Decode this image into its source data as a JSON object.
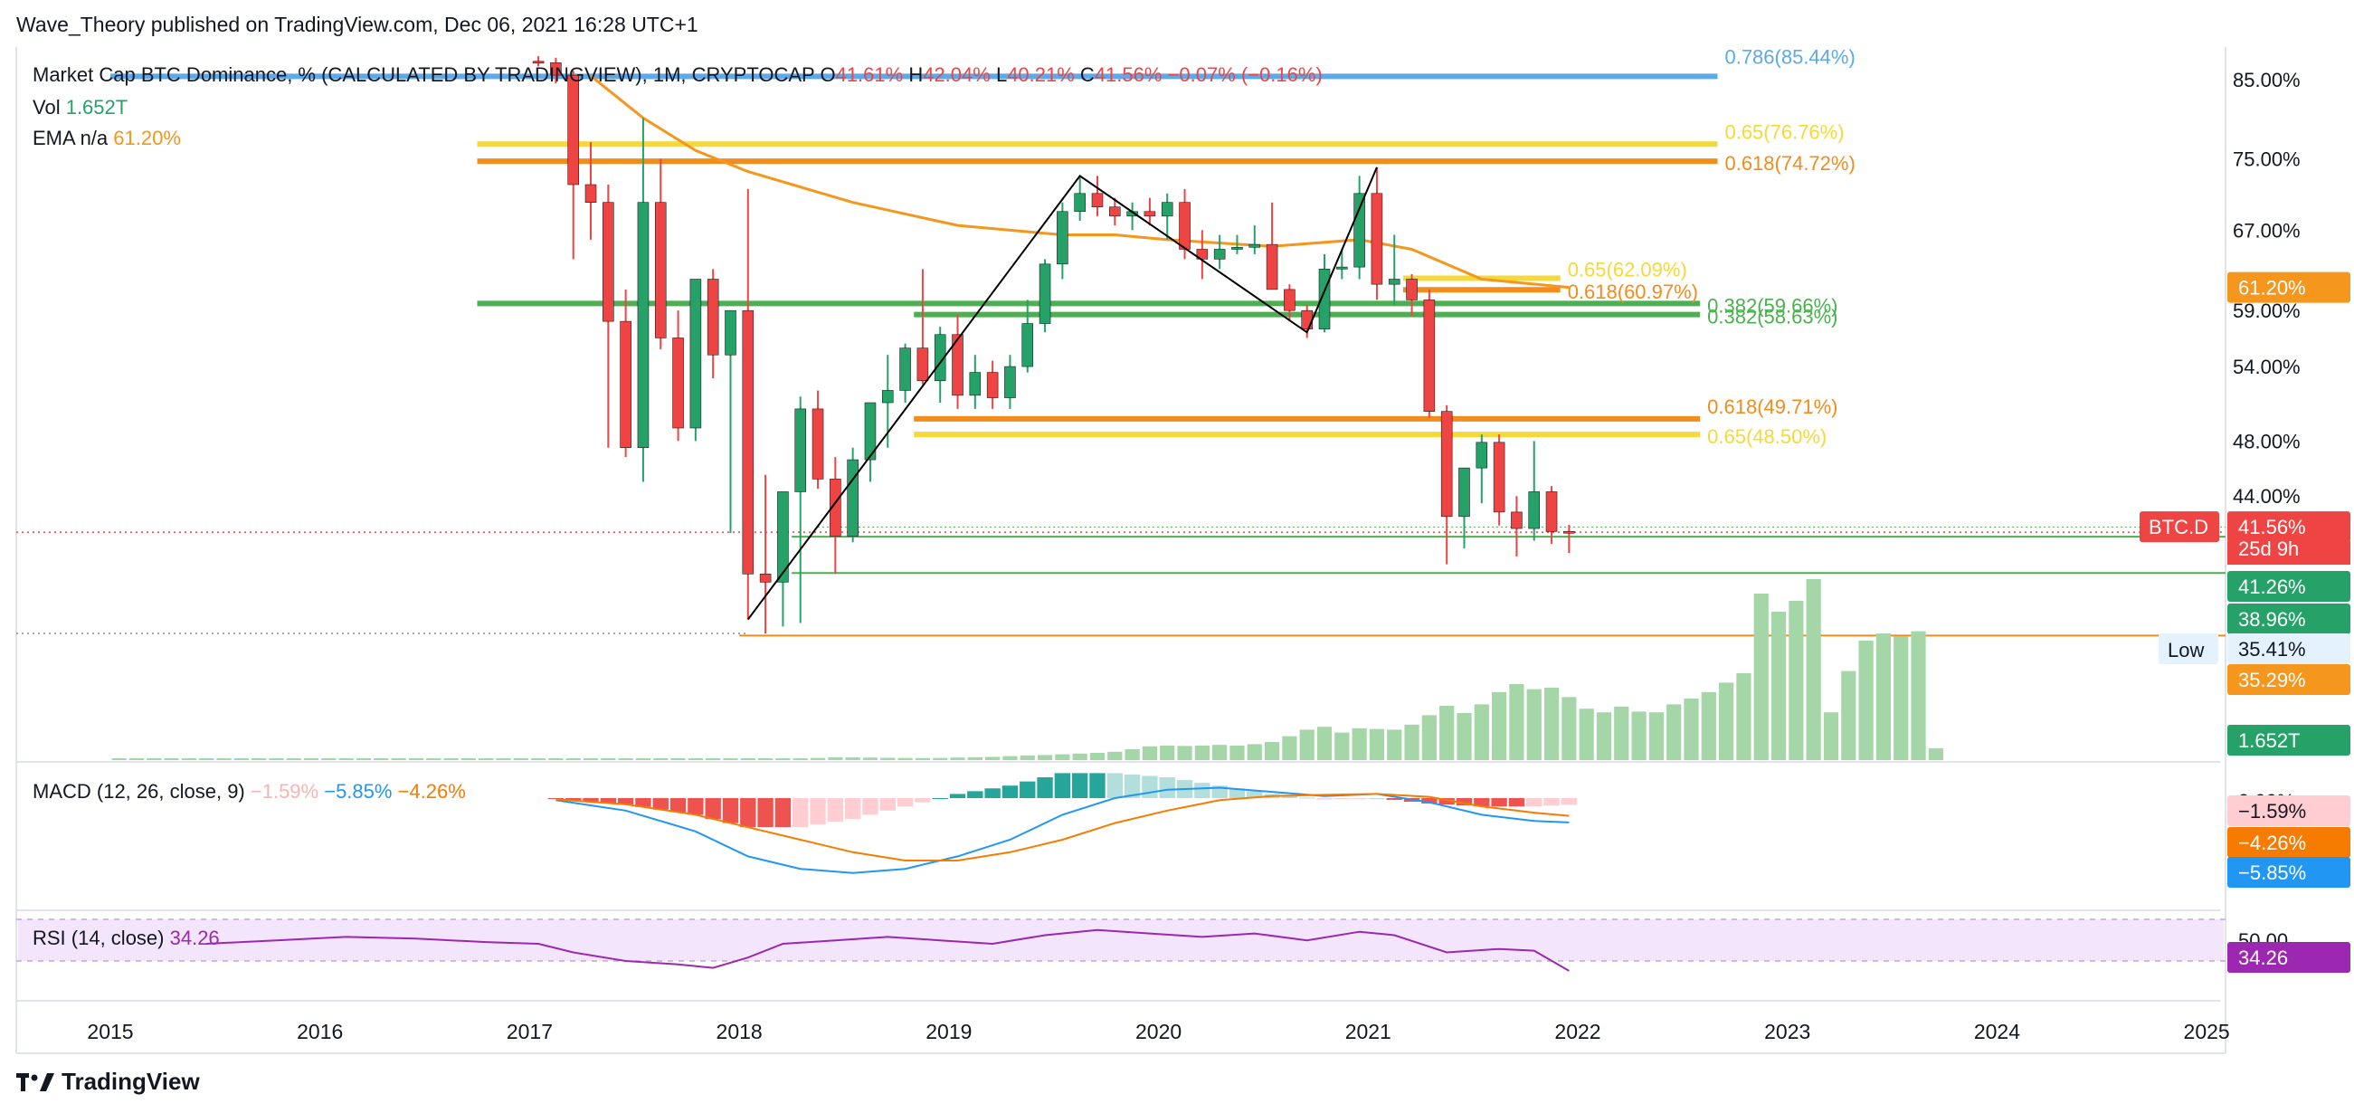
{
  "header": {
    "published": "Wave_Theory published on TradingView.com, Dec 06, 2021 16:28 UTC+1"
  },
  "legend": {
    "symbol": "Market Cap BTC Dominance, % (CALCULATED BY TRADINGVIEW), 1M, CRYPTOCAP",
    "open_label": "O",
    "open": "41.61%",
    "high_label": "H",
    "high": "42.04%",
    "low_label": "L",
    "low": "40.21%",
    "close_label": "C",
    "close": "41.56%",
    "change": "−0.07% (−0.16%)",
    "vol_label": "Vol",
    "vol": "1.652T",
    "ema_label": "EMA n/a",
    "ema": "61.20%"
  },
  "price_axis": {
    "ticks": [
      "85.00%",
      "75.00%",
      "67.00%",
      "59.00%",
      "54.00%",
      "48.00%",
      "44.00%"
    ]
  },
  "price_labels": {
    "ema": "61.20%",
    "symbol_tag": "BTC.D",
    "last": "41.56%",
    "countdown": "25d 9h",
    "level1": "41.26%",
    "level2": "38.96%",
    "low_tag": "Low",
    "low_value": "35.41%",
    "level3": "35.29%",
    "volume": "1.652T"
  },
  "fib_levels": [
    {
      "label": "0.786(85.44%)",
      "color": "#5da9e9"
    },
    {
      "label": "0.65(76.76%)",
      "color": "#f5d938"
    },
    {
      "label": "0.618(74.72%)",
      "color": "#f28c1c"
    },
    {
      "label": "0.65(62.09%)",
      "color": "#f5d938"
    },
    {
      "label": "0.618(60.97%)",
      "color": "#f28c1c"
    },
    {
      "label": "0.382(59.66%)",
      "color": "#4caf50"
    },
    {
      "label": "0.382(58.63%)",
      "color": "#4caf50"
    },
    {
      "label": "0.618(49.71%)",
      "color": "#f28c1c"
    },
    {
      "label": "0.65(48.50%)",
      "color": "#f5d938"
    }
  ],
  "macd": {
    "title": "MACD (12, 26, close, 9)",
    "hist": "−1.59%",
    "macd": "−5.85%",
    "signal": "−4.26%",
    "axis_top": "0.00%",
    "label_hist": "−1.59%",
    "label_signal": "−4.26%",
    "label_macd": "−5.85%"
  },
  "rsi": {
    "title": "RSI (14, close)",
    "value": "34.26",
    "axis_top": "50.00",
    "label": "34.26"
  },
  "time_axis": [
    "2015",
    "2016",
    "2017",
    "2018",
    "2019",
    "2020",
    "2021",
    "2022",
    "2023",
    "2024",
    "2025"
  ],
  "brand": "TradingView",
  "colors": {
    "up": "#26a269",
    "down": "#ef4444",
    "volume": "#a5d6a7",
    "ema": "#f5961d",
    "macd": "#2196f3",
    "signal": "#f57c00",
    "rsi": "#9c27b0",
    "rsi_band": "#f3e5fb",
    "fib_blue": "#5da9e9",
    "fib_yellow": "#f5d938",
    "fib_orange": "#f28c1c",
    "fib_green": "#4caf50"
  },
  "chart_data": {
    "type": "candlestick",
    "title": "Market Cap BTC Dominance, % (CALCULATED BY TRADINGVIEW), 1M, CRYPTOCAP",
    "interval": "1M",
    "y_scale": "log",
    "ylim": [
      33,
      88
    ],
    "xlim": [
      "2015-01",
      "2025-01"
    ],
    "candles_ohlc": [
      [
        "2017-01",
        87.5,
        88.2,
        86.8,
        87.3
      ],
      [
        "2017-02",
        87.3,
        88.0,
        84.5,
        85.6
      ],
      [
        "2017-03",
        85.6,
        86.2,
        64.0,
        72.0
      ],
      [
        "2017-04",
        72.0,
        77.0,
        66.0,
        70.0
      ],
      [
        "2017-05",
        70.0,
        72.0,
        47.5,
        58.0
      ],
      [
        "2017-06",
        58.0,
        61.0,
        46.8,
        47.5
      ],
      [
        "2017-07",
        47.5,
        80.0,
        45.0,
        70.0
      ],
      [
        "2017-08",
        70.0,
        75.0,
        55.5,
        56.5
      ],
      [
        "2017-09",
        56.5,
        59.0,
        48.0,
        49.0
      ],
      [
        "2017-10",
        49.0,
        62.0,
        48.0,
        62.0
      ],
      [
        "2017-11",
        62.0,
        63.0,
        53.0,
        55.0
      ],
      [
        "2017-12",
        55.0,
        59.0,
        41.5,
        59.0
      ],
      [
        "2018-01",
        59.0,
        71.5,
        36.2,
        38.9
      ],
      [
        "2018-02",
        38.9,
        45.5,
        35.4,
        38.4
      ],
      [
        "2018-03",
        38.4,
        44.3,
        35.8,
        44.3
      ],
      [
        "2018-04",
        44.3,
        51.5,
        36.0,
        50.5
      ],
      [
        "2018-05",
        50.5,
        52.0,
        44.5,
        45.2
      ],
      [
        "2018-06",
        45.2,
        46.8,
        38.9,
        41.3
      ],
      [
        "2018-07",
        41.3,
        47.5,
        40.9,
        46.6
      ],
      [
        "2018-08",
        46.6,
        51.0,
        45.0,
        51.0
      ],
      [
        "2018-09",
        51.0,
        55.0,
        47.5,
        52.0
      ],
      [
        "2018-10",
        52.0,
        56.0,
        51.0,
        55.6
      ],
      [
        "2018-11",
        55.6,
        63.0,
        52.5,
        52.8
      ],
      [
        "2018-12",
        52.8,
        57.5,
        51.0,
        56.8
      ],
      [
        "2019-01",
        56.8,
        58.6,
        50.5,
        51.6
      ],
      [
        "2019-02",
        51.6,
        55.0,
        50.5,
        53.5
      ],
      [
        "2019-03",
        53.5,
        54.5,
        50.5,
        51.4
      ],
      [
        "2019-04",
        51.4,
        55.0,
        50.5,
        54.0
      ],
      [
        "2019-05",
        54.0,
        60.0,
        53.5,
        57.8
      ],
      [
        "2019-06",
        57.8,
        64.0,
        57.0,
        63.5
      ],
      [
        "2019-07",
        63.5,
        70.0,
        62.0,
        69.0
      ],
      [
        "2019-08",
        69.0,
        73.0,
        68.0,
        71.0
      ],
      [
        "2019-09",
        71.0,
        73.0,
        68.5,
        69.5
      ],
      [
        "2019-10",
        69.5,
        70.5,
        67.5,
        68.5
      ],
      [
        "2019-11",
        68.5,
        70.0,
        67.0,
        69.0
      ],
      [
        "2019-12",
        69.0,
        70.5,
        67.5,
        68.5
      ],
      [
        "2020-01",
        68.5,
        71.0,
        66.0,
        70.0
      ],
      [
        "2020-02",
        70.0,
        71.5,
        64.0,
        65.0
      ],
      [
        "2020-03",
        65.0,
        67.0,
        62.0,
        64.0
      ],
      [
        "2020-04",
        64.0,
        66.5,
        63.0,
        65.0
      ],
      [
        "2020-05",
        65.0,
        66.5,
        64.5,
        65.2
      ],
      [
        "2020-06",
        65.2,
        67.5,
        64.5,
        65.5
      ],
      [
        "2020-07",
        65.5,
        70.0,
        62.0,
        61.0
      ],
      [
        "2020-08",
        61.0,
        61.5,
        58.0,
        59.0
      ],
      [
        "2020-09",
        59.0,
        59.5,
        56.5,
        57.3
      ],
      [
        "2020-10",
        57.3,
        64.5,
        57.0,
        63.0
      ],
      [
        "2020-11",
        63.0,
        65.0,
        62.0,
        63.2
      ],
      [
        "2020-12",
        63.2,
        73.0,
        62.0,
        71.0
      ],
      [
        "2021-01",
        71.0,
        74.0,
        60.0,
        61.5
      ],
      [
        "2021-02",
        61.5,
        66.5,
        59.5,
        62.0
      ],
      [
        "2021-03",
        62.0,
        62.5,
        58.5,
        60.0
      ],
      [
        "2021-04",
        60.0,
        61.0,
        49.8,
        50.3
      ],
      [
        "2021-05",
        50.3,
        50.8,
        39.5,
        42.6
      ],
      [
        "2021-06",
        42.6,
        46.0,
        40.5,
        46.0
      ],
      [
        "2021-07",
        46.0,
        48.5,
        43.5,
        47.9
      ],
      [
        "2021-08",
        47.9,
        48.5,
        42.0,
        42.9
      ],
      [
        "2021-09",
        42.9,
        44.0,
        40.0,
        41.8
      ],
      [
        "2021-10",
        41.8,
        48.0,
        41.0,
        44.3
      ],
      [
        "2021-11",
        44.3,
        44.7,
        40.8,
        41.6
      ],
      [
        "2021-12",
        41.61,
        42.04,
        40.21,
        41.56
      ]
    ],
    "volume_trillions": [
      0.004,
      0.004,
      0.004,
      0.004,
      0.004,
      0.004,
      0.005,
      0.005,
      0.006,
      0.006,
      0.007,
      0.008,
      0.009,
      0.01,
      0.01,
      0.01,
      0.011,
      0.011,
      0.012,
      0.012,
      0.014,
      0.016,
      0.02,
      0.024,
      0.03,
      0.036,
      0.042,
      0.045,
      0.05,
      0.052,
      0.055,
      0.058,
      0.065,
      0.07,
      0.08,
      0.09,
      0.1,
      0.12,
      0.15,
      0.2,
      0.3,
      0.4,
      0.38,
      0.35,
      0.32,
      0.3,
      0.28,
      0.3,
      0.35,
      0.4,
      0.45,
      0.55,
      0.65,
      0.7,
      0.8,
      0.9,
      1.0,
      1.15,
      1.5,
      1.9,
      2.0,
      1.95,
      2.0,
      2.1,
      2.0,
      2.2,
      2.5,
      3.3,
      4.2,
      4.6,
      3.8,
      4.4,
      4.3,
      4.2,
      4.9,
      6.2,
      7.5,
      6.5,
      7.7,
      9.4,
      10.5,
      9.8,
      10.0,
      8.7,
      7.1,
      6.6,
      7.4,
      6.7,
      6.6,
      7.7,
      8.5,
      9.4,
      10.7,
      12.0,
      23.0,
      20.5,
      22.0,
      25.0,
      6.6,
      12.3,
      16.5,
      17.5,
      17.1,
      17.8,
      1.65
    ],
    "volume_start": "2015-01",
    "ema": [
      [
        "2017-04",
        85.5
      ],
      [
        "2017-07",
        80.0
      ],
      [
        "2017-10",
        76.0
      ],
      [
        "2018-01",
        73.5
      ],
      [
        "2018-07",
        70.0
      ],
      [
        "2019-01",
        67.5
      ],
      [
        "2019-07",
        66.5
      ],
      [
        "2019-10",
        66.5
      ],
      [
        "2020-01",
        66.0
      ],
      [
        "2020-07",
        65.3
      ],
      [
        "2020-12",
        66.0
      ],
      [
        "2021-03",
        65.0
      ],
      [
        "2021-07",
        62.0
      ],
      [
        "2021-12",
        61.2
      ]
    ],
    "fib_lines": [
      {
        "label": "0.786(85.44%)",
        "value": 85.44,
        "from": "2015-01",
        "to": "2022-09",
        "color": "#5da9e9"
      },
      {
        "label": "0.65(76.76%)",
        "value": 76.76,
        "from": "2016-10",
        "to": "2022-09",
        "color": "#f5d938"
      },
      {
        "label": "0.618(74.72%)",
        "value": 74.72,
        "from": "2016-10",
        "to": "2022-09",
        "color": "#f28c1c"
      },
      {
        "label": "0.65(62.09%)",
        "value": 62.09,
        "from": "2021-03",
        "to": "2021-12",
        "color": "#f5d938"
      },
      {
        "label": "0.618(60.97%)",
        "value": 60.97,
        "from": "2021-03",
        "to": "2021-12",
        "color": "#f28c1c"
      },
      {
        "label": "0.382(59.66%)",
        "value": 59.66,
        "from": "2016-10",
        "to": "2022-08",
        "color": "#4caf50"
      },
      {
        "label": "0.382(58.63%)",
        "value": 58.63,
        "from": "2018-11",
        "to": "2022-08",
        "color": "#4caf50"
      },
      {
        "label": "0.618(49.71%)",
        "value": 49.71,
        "from": "2018-11",
        "to": "2022-08",
        "color": "#f28c1c"
      },
      {
        "label": "0.65(48.50%)",
        "value": 48.5,
        "from": "2018-11",
        "to": "2022-08",
        "color": "#f5d938"
      }
    ],
    "trend_lines": [
      {
        "points": [
          [
            "2018-01",
            36.2
          ],
          [
            "2019-08",
            73.0
          ],
          [
            "2020-09",
            57.0
          ],
          [
            "2021-01",
            74.0
          ]
        ],
        "color": "#000000"
      }
    ],
    "horizontal_levels": [
      {
        "value": 41.26,
        "color": "#4caf50",
        "from": "2018-04"
      },
      {
        "value": 38.96,
        "color": "#4caf50",
        "from": "2018-04"
      },
      {
        "value": 35.29,
        "color": "#f28c1c",
        "from": "2018-01"
      }
    ],
    "macd": {
      "hist_color_pos": "#26a69a",
      "hist_color_neg": "#ef5350",
      "values": [
        [
          "2017-02",
          -0.5,
          -0.3,
          -0.2
        ],
        [
          "2017-06",
          -3,
          -1.5,
          -1.5
        ],
        [
          "2017-10",
          -8,
          -4,
          -4
        ],
        [
          "2018-01",
          -14,
          -7,
          -7
        ],
        [
          "2018-04",
          -17,
          -10,
          -7
        ],
        [
          "2018-07",
          -18,
          -13,
          -5
        ],
        [
          "2018-10",
          -17,
          -15,
          -2
        ],
        [
          "2019-01",
          -14,
          -15,
          1
        ],
        [
          "2019-04",
          -10,
          -13,
          3
        ],
        [
          "2019-07",
          -4,
          -10,
          6
        ],
        [
          "2019-10",
          0,
          -6,
          6
        ],
        [
          "2020-01",
          2,
          -3,
          5
        ],
        [
          "2020-04",
          2.5,
          -0.5,
          3
        ],
        [
          "2020-07",
          1.5,
          0.5,
          1
        ],
        [
          "2020-10",
          0.5,
          0.8,
          -0.3
        ],
        [
          "2021-01",
          1,
          1,
          0
        ],
        [
          "2021-04",
          -1,
          0.3,
          -1.3
        ],
        [
          "2021-07",
          -4,
          -2,
          -2
        ],
        [
          "2021-10",
          -5.5,
          -3.5,
          -2
        ],
        [
          "2021-12",
          -5.85,
          -4.26,
          -1.59
        ]
      ]
    },
    "rsi": {
      "values": [
        [
          "2015-06",
          50
        ],
        [
          "2015-10",
          52
        ],
        [
          "2016-02",
          54
        ],
        [
          "2016-06",
          53
        ],
        [
          "2016-10",
          51
        ],
        [
          "2017-01",
          50
        ],
        [
          "2017-03",
          45
        ],
        [
          "2017-06",
          40
        ],
        [
          "2017-09",
          38
        ],
        [
          "2017-11",
          36
        ],
        [
          "2018-01",
          42
        ],
        [
          "2018-03",
          50
        ],
        [
          "2018-06",
          52
        ],
        [
          "2018-09",
          54
        ],
        [
          "2018-12",
          52
        ],
        [
          "2019-03",
          50
        ],
        [
          "2019-06",
          55
        ],
        [
          "2019-09",
          58
        ],
        [
          "2019-12",
          56
        ],
        [
          "2020-03",
          54
        ],
        [
          "2020-06",
          56
        ],
        [
          "2020-09",
          52
        ],
        [
          "2020-12",
          57
        ],
        [
          "2021-02",
          55
        ],
        [
          "2021-05",
          45
        ],
        [
          "2021-08",
          47
        ],
        [
          "2021-10",
          46
        ],
        [
          "2021-12",
          34.26
        ]
      ]
    }
  }
}
